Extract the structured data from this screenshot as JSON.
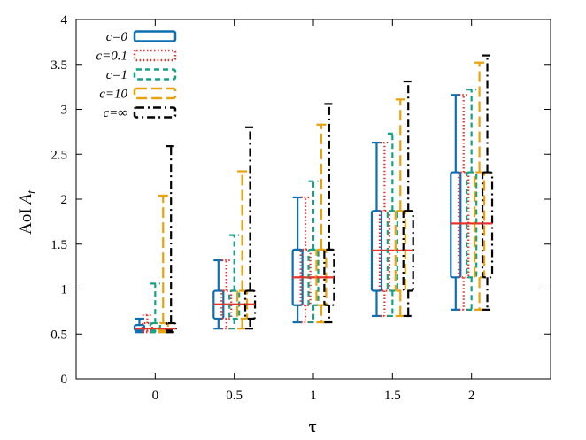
{
  "chart_data": {
    "type": "boxplot",
    "title": "",
    "xlabel": "τ",
    "ylabel": "AoI A_t",
    "ylabel_main": "AoI ",
    "ylabel_var": "A",
    "ylabel_sub": "t",
    "xlim": [
      -0.5,
      2.5
    ],
    "ylim": [
      0,
      4
    ],
    "x_ticks": [
      0,
      0.5,
      1,
      1.5,
      2
    ],
    "x_tick_labels": [
      "0",
      "0.5",
      "1",
      "1.5",
      "2"
    ],
    "y_ticks": [
      0,
      0.5,
      1,
      1.5,
      2,
      2.5,
      3,
      3.5,
      4
    ],
    "y_tick_labels": [
      "0",
      "0.5",
      "1",
      "1.5",
      "2",
      "2.5",
      "3",
      "3.5",
      "4"
    ],
    "legend_position": "top-left",
    "series": [
      {
        "name": "c=0",
        "legend_label": "c=0",
        "color": "#0d6eb0",
        "dash": "solid",
        "offset": -0.1,
        "boxes": [
          {
            "x": 0,
            "min": 0.52,
            "q1": 0.54,
            "median": 0.56,
            "q3": 0.6,
            "max": 0.67
          },
          {
            "x": 0.5,
            "min": 0.56,
            "q1": 0.67,
            "median": 0.83,
            "q3": 0.98,
            "max": 1.32
          },
          {
            "x": 1,
            "min": 0.63,
            "q1": 0.82,
            "median": 1.13,
            "q3": 1.44,
            "max": 2.02
          },
          {
            "x": 1.5,
            "min": 0.7,
            "q1": 0.98,
            "median": 1.43,
            "q3": 1.87,
            "max": 2.63
          },
          {
            "x": 2,
            "min": 0.77,
            "q1": 1.13,
            "median": 1.73,
            "q3": 2.3,
            "max": 3.16
          }
        ]
      },
      {
        "name": "c=0.1",
        "legend_label": "c=0.1",
        "color": "#e8312a",
        "dash": "dotted",
        "offset": -0.05,
        "boxes": [
          {
            "x": 0,
            "min": 0.52,
            "q1": 0.54,
            "median": 0.56,
            "q3": 0.62,
            "max": 0.71
          },
          {
            "x": 0.5,
            "min": 0.56,
            "q1": 0.67,
            "median": 0.83,
            "q3": 0.98,
            "max": 1.32
          },
          {
            "x": 1,
            "min": 0.63,
            "q1": 0.82,
            "median": 1.13,
            "q3": 1.44,
            "max": 2.02
          },
          {
            "x": 1.5,
            "min": 0.7,
            "q1": 0.98,
            "median": 1.43,
            "q3": 1.87,
            "max": 2.63
          },
          {
            "x": 2,
            "min": 0.77,
            "q1": 1.13,
            "median": 1.73,
            "q3": 2.3,
            "max": 3.16
          }
        ]
      },
      {
        "name": "c=1",
        "legend_label": "c=1",
        "color": "#16a085",
        "dash": "dashed",
        "offset": 0,
        "boxes": [
          {
            "x": 0,
            "min": 0.52,
            "q1": 0.54,
            "median": 0.56,
            "q3": 0.62,
            "max": 1.06
          },
          {
            "x": 0.5,
            "min": 0.56,
            "q1": 0.67,
            "median": 0.83,
            "q3": 0.98,
            "max": 1.6
          },
          {
            "x": 1,
            "min": 0.63,
            "q1": 0.82,
            "median": 1.13,
            "q3": 1.44,
            "max": 2.2
          },
          {
            "x": 1.5,
            "min": 0.7,
            "q1": 0.98,
            "median": 1.43,
            "q3": 1.87,
            "max": 2.73
          },
          {
            "x": 2,
            "min": 0.77,
            "q1": 1.13,
            "median": 1.73,
            "q3": 2.3,
            "max": 3.22
          }
        ]
      },
      {
        "name": "c=10",
        "legend_label": "c=10",
        "color": "#e8a20c",
        "dash": "longdash",
        "offset": 0.05,
        "boxes": [
          {
            "x": 0,
            "min": 0.52,
            "q1": 0.54,
            "median": 0.56,
            "q3": 0.62,
            "max": 2.04
          },
          {
            "x": 0.5,
            "min": 0.56,
            "q1": 0.67,
            "median": 0.83,
            "q3": 0.98,
            "max": 2.31
          },
          {
            "x": 1,
            "min": 0.63,
            "q1": 0.82,
            "median": 1.13,
            "q3": 1.44,
            "max": 2.83
          },
          {
            "x": 1.5,
            "min": 0.7,
            "q1": 0.98,
            "median": 1.43,
            "q3": 1.87,
            "max": 3.11
          },
          {
            "x": 2,
            "min": 0.77,
            "q1": 1.13,
            "median": 1.73,
            "q3": 2.3,
            "max": 3.52
          }
        ]
      },
      {
        "name": "c=∞",
        "legend_label": "c=∞",
        "color": "#000000",
        "dash": "dashdot",
        "offset": 0.1,
        "boxes": [
          {
            "x": 0,
            "min": 0.52,
            "q1": 0.54,
            "median": 0.56,
            "q3": 0.62,
            "max": 2.59
          },
          {
            "x": 0.5,
            "min": 0.56,
            "q1": 0.67,
            "median": 0.83,
            "q3": 0.98,
            "max": 2.8
          },
          {
            "x": 1,
            "min": 0.63,
            "q1": 0.82,
            "median": 1.13,
            "q3": 1.44,
            "max": 3.06
          },
          {
            "x": 1.5,
            "min": 0.7,
            "q1": 0.98,
            "median": 1.43,
            "q3": 1.87,
            "max": 3.31
          },
          {
            "x": 2,
            "min": 0.77,
            "q1": 1.13,
            "median": 1.73,
            "q3": 2.3,
            "max": 3.6
          }
        ]
      }
    ]
  }
}
